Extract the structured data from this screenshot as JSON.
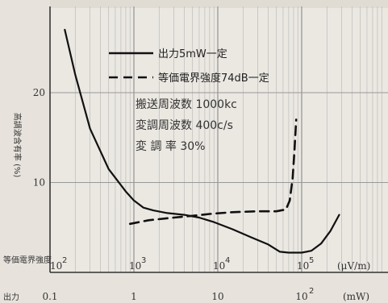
{
  "chart_data": {
    "type": "line",
    "ylabel": "高調波含有率 (%)",
    "ylim": [
      0,
      27
    ],
    "yticks": [
      10,
      20
    ],
    "field_axis": {
      "label": "等価電界強度",
      "ticks": [
        "10",
        "10",
        "10",
        "10"
      ],
      "superscripts": [
        "2",
        "3",
        "4",
        "5"
      ],
      "unit": "(μV/m)"
    },
    "output_axis": {
      "label": "出力",
      "ticks": [
        "0.1",
        "1",
        "10",
        "10"
      ],
      "superscripts": [
        "",
        "",
        "",
        "2"
      ],
      "unit": "(mW)"
    },
    "legend": [
      {
        "label": "出力5mW一定",
        "style": "solid"
      },
      {
        "label": "等価電界強度74dB一定",
        "style": "dashed"
      }
    ],
    "annotations": [
      "搬送周波数 1000kc",
      "変調周波数 400c/s",
      "変 調 率 30%"
    ],
    "series": [
      {
        "name": "出力5mW一定",
        "style": "solid",
        "points": [
          [
            0.15,
            27.0
          ],
          [
            0.2,
            22.0
          ],
          [
            0.3,
            16.0
          ],
          [
            0.5,
            11.5
          ],
          [
            0.8,
            9.0
          ],
          [
            1.0,
            8.0
          ],
          [
            1.3,
            7.2
          ],
          [
            1.7,
            6.9
          ],
          [
            2.5,
            6.6
          ],
          [
            4.0,
            6.4
          ],
          [
            6.0,
            6.1
          ],
          [
            9.0,
            5.6
          ],
          [
            15.0,
            4.8
          ],
          [
            25.0,
            3.9
          ],
          [
            40.0,
            3.1
          ],
          [
            55.0,
            2.3
          ],
          [
            70.0,
            2.2
          ],
          [
            100.0,
            2.2
          ],
          [
            130.0,
            2.4
          ],
          [
            170.0,
            3.2
          ],
          [
            220.0,
            4.6
          ],
          [
            280.0,
            6.4
          ]
        ]
      },
      {
        "name": "等価電界強度74dB一定",
        "style": "dashed",
        "points": [
          [
            0.9,
            5.4
          ],
          [
            1.5,
            5.8
          ],
          [
            3.0,
            6.1
          ],
          [
            5.0,
            6.3
          ],
          [
            8.0,
            6.5
          ],
          [
            15.0,
            6.7
          ],
          [
            30.0,
            6.8
          ],
          [
            50.0,
            6.8
          ],
          [
            65.0,
            7.0
          ],
          [
            72.0,
            8.0
          ],
          [
            78.0,
            10.5
          ],
          [
            82.0,
            13.5
          ],
          [
            86.0,
            17.0
          ]
        ]
      }
    ]
  }
}
